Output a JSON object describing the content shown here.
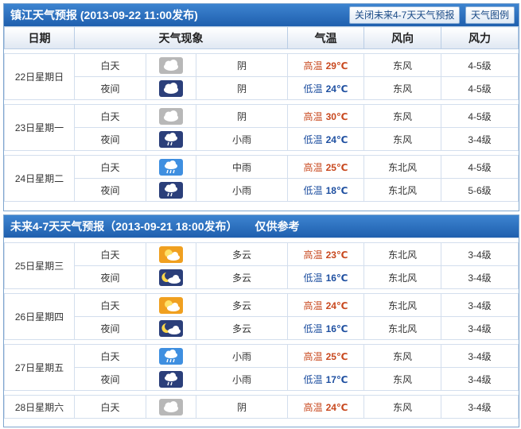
{
  "today": {
    "title": "镇江天气预报 (2013-09-22  11:00发布)",
    "close_future_btn": "关闭未来4-7天天气预报",
    "legend_btn": "天气图例"
  },
  "future": {
    "title": "未来4-7天天气预报（2013-09-21 18:00发布）",
    "note": "仅供参考"
  },
  "headers": {
    "date": "日期",
    "phenomenon": "天气现象",
    "temperature": "气温",
    "wind_dir": "风向",
    "wind_force": "风力"
  },
  "days1": [
    {
      "date": "22日星期日",
      "periods": [
        {
          "period": "白天",
          "icon": "cloudy-day",
          "weather": "阴",
          "temp_label": "高温",
          "temp": "29℃",
          "wind_dir": "东风",
          "wind_force": "4-5级"
        },
        {
          "period": "夜间",
          "icon": "cloudy-night",
          "weather": "阴",
          "temp_label": "低温",
          "temp": "24℃",
          "wind_dir": "东风",
          "wind_force": "4-5级"
        }
      ]
    },
    {
      "date": "23日星期一",
      "periods": [
        {
          "period": "白天",
          "icon": "cloudy-day",
          "weather": "阴",
          "temp_label": "高温",
          "temp": "30℃",
          "wind_dir": "东风",
          "wind_force": "4-5级"
        },
        {
          "period": "夜间",
          "icon": "rain-night",
          "weather": "小雨",
          "temp_label": "低温",
          "temp": "24℃",
          "wind_dir": "东风",
          "wind_force": "3-4级"
        }
      ]
    },
    {
      "date": "24日星期二",
      "periods": [
        {
          "period": "白天",
          "icon": "rain-day",
          "weather": "中雨",
          "temp_label": "高温",
          "temp": "25℃",
          "wind_dir": "东北风",
          "wind_force": "4-5级"
        },
        {
          "period": "夜间",
          "icon": "rain-night",
          "weather": "小雨",
          "temp_label": "低温",
          "temp": "18℃",
          "wind_dir": "东北风",
          "wind_force": "5-6级"
        }
      ]
    }
  ],
  "days2": [
    {
      "date": "25日星期三",
      "periods": [
        {
          "period": "白天",
          "icon": "partly-day",
          "weather": "多云",
          "temp_label": "高温",
          "temp": "23℃",
          "wind_dir": "东北风",
          "wind_force": "3-4级"
        },
        {
          "period": "夜间",
          "icon": "partly-night",
          "weather": "多云",
          "temp_label": "低温",
          "temp": "16℃",
          "wind_dir": "东北风",
          "wind_force": "3-4级"
        }
      ]
    },
    {
      "date": "26日星期四",
      "periods": [
        {
          "period": "白天",
          "icon": "partly-day",
          "weather": "多云",
          "temp_label": "高温",
          "temp": "24℃",
          "wind_dir": "东北风",
          "wind_force": "3-4级"
        },
        {
          "period": "夜间",
          "icon": "partly-night",
          "weather": "多云",
          "temp_label": "低温",
          "temp": "16℃",
          "wind_dir": "东北风",
          "wind_force": "3-4级"
        }
      ]
    },
    {
      "date": "27日星期五",
      "periods": [
        {
          "period": "白天",
          "icon": "rain-day",
          "weather": "小雨",
          "temp_label": "高温",
          "temp": "25℃",
          "wind_dir": "东风",
          "wind_force": "3-4级"
        },
        {
          "period": "夜间",
          "icon": "rain-night",
          "weather": "小雨",
          "temp_label": "低温",
          "temp": "17℃",
          "wind_dir": "东风",
          "wind_force": "3-4级"
        }
      ]
    },
    {
      "date": "28日星期六",
      "periods": [
        {
          "period": "白天",
          "icon": "cloudy-day",
          "weather": "阴",
          "temp_label": "高温",
          "temp": "24℃",
          "wind_dir": "东风",
          "wind_force": "3-4级"
        }
      ]
    }
  ]
}
